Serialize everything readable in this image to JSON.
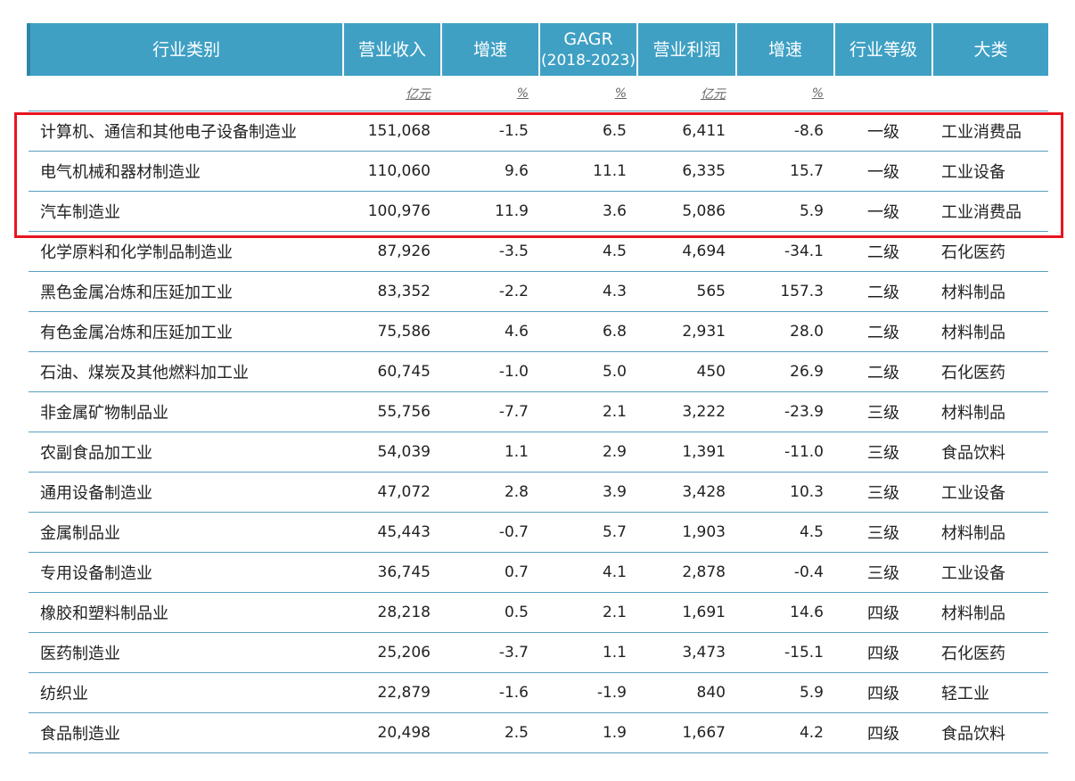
{
  "headers": {
    "industry": "行业类别",
    "revenue": "营业收入",
    "revenue_growth": "增速",
    "gagr_top": "GAGR",
    "gagr_sub": "(2018-2023)",
    "profit": "营业利润",
    "profit_growth": "增速",
    "grade": "行业等级",
    "category": "大类"
  },
  "units": {
    "revenue": "亿元",
    "revenue_growth": "%",
    "gagr": "%",
    "profit": "亿元",
    "profit_growth": "%"
  },
  "rows": [
    {
      "industry": "计算机、通信和其他电子设备制造业",
      "revenue": "151,068",
      "revenue_growth": "-1.5",
      "gagr": "6.5",
      "profit": "6,411",
      "profit_growth": "-8.6",
      "grade": "一级",
      "category": "工业消费品"
    },
    {
      "industry": "电气机械和器材制造业",
      "revenue": "110,060",
      "revenue_growth": "9.6",
      "gagr": "11.1",
      "profit": "6,335",
      "profit_growth": "15.7",
      "grade": "一级",
      "category": "工业设备"
    },
    {
      "industry": "汽车制造业",
      "revenue": "100,976",
      "revenue_growth": "11.9",
      "gagr": "3.6",
      "profit": "5,086",
      "profit_growth": "5.9",
      "grade": "一级",
      "category": "工业消费品"
    },
    {
      "industry": "化学原料和化学制品制造业",
      "revenue": "87,926",
      "revenue_growth": "-3.5",
      "gagr": "4.5",
      "profit": "4,694",
      "profit_growth": "-34.1",
      "grade": "二级",
      "category": "石化医药"
    },
    {
      "industry": "黑色金属冶炼和压延加工业",
      "revenue": "83,352",
      "revenue_growth": "-2.2",
      "gagr": "4.3",
      "profit": "565",
      "profit_growth": "157.3",
      "grade": "二级",
      "category": "材料制品"
    },
    {
      "industry": "有色金属冶炼和压延加工业",
      "revenue": "75,586",
      "revenue_growth": "4.6",
      "gagr": "6.8",
      "profit": "2,931",
      "profit_growth": "28.0",
      "grade": "二级",
      "category": "材料制品"
    },
    {
      "industry": "石油、煤炭及其他燃料加工业",
      "revenue": "60,745",
      "revenue_growth": "-1.0",
      "gagr": "5.0",
      "profit": "450",
      "profit_growth": "26.9",
      "grade": "二级",
      "category": "石化医药"
    },
    {
      "industry": "非金属矿物制品业",
      "revenue": "55,756",
      "revenue_growth": "-7.7",
      "gagr": "2.1",
      "profit": "3,222",
      "profit_growth": "-23.9",
      "grade": "三级",
      "category": "材料制品"
    },
    {
      "industry": "农副食品加工业",
      "revenue": "54,039",
      "revenue_growth": "1.1",
      "gagr": "2.9",
      "profit": "1,391",
      "profit_growth": "-11.0",
      "grade": "三级",
      "category": "食品饮料"
    },
    {
      "industry": "通用设备制造业",
      "revenue": "47,072",
      "revenue_growth": "2.8",
      "gagr": "3.9",
      "profit": "3,428",
      "profit_growth": "10.3",
      "grade": "三级",
      "category": "工业设备"
    },
    {
      "industry": "金属制品业",
      "revenue": "45,443",
      "revenue_growth": "-0.7",
      "gagr": "5.7",
      "profit": "1,903",
      "profit_growth": "4.5",
      "grade": "三级",
      "category": "材料制品"
    },
    {
      "industry": "专用设备制造业",
      "revenue": "36,745",
      "revenue_growth": "0.7",
      "gagr": "4.1",
      "profit": "2,878",
      "profit_growth": "-0.4",
      "grade": "三级",
      "category": "工业设备"
    },
    {
      "industry": "橡胶和塑料制品业",
      "revenue": "28,218",
      "revenue_growth": "0.5",
      "gagr": "2.1",
      "profit": "1,691",
      "profit_growth": "14.6",
      "grade": "四级",
      "category": "材料制品"
    },
    {
      "industry": "医药制造业",
      "revenue": "25,206",
      "revenue_growth": "-3.7",
      "gagr": "1.1",
      "profit": "3,473",
      "profit_growth": "-15.1",
      "grade": "四级",
      "category": "石化医药"
    },
    {
      "industry": "纺织业",
      "revenue": "22,879",
      "revenue_growth": "-1.6",
      "gagr": "-1.9",
      "profit": "840",
      "profit_growth": "5.9",
      "grade": "四级",
      "category": "轻工业"
    },
    {
      "industry": "食品制造业",
      "revenue": "20,498",
      "revenue_growth": "2.5",
      "gagr": "1.9",
      "profit": "1,667",
      "profit_growth": "4.2",
      "grade": "四级",
      "category": "食品饮料"
    }
  ],
  "colors": {
    "header_bg": "#3fa0c4",
    "header_text": "#ffffff",
    "row_divider": "#5a9fc0",
    "highlight": "#e8141e"
  }
}
